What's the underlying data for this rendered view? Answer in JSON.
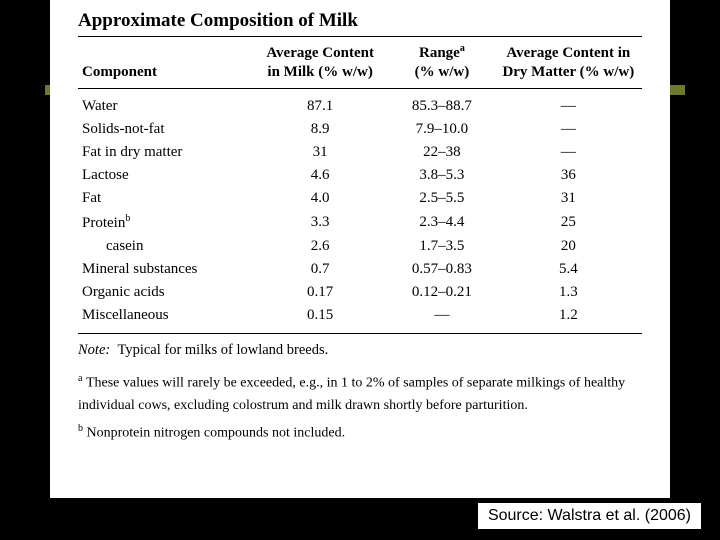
{
  "title": "Approximate Composition of Milk",
  "columns": {
    "component": "Component",
    "avg_line1": "Average Content",
    "avg_line2": "in Milk (% w/w)",
    "range_line1": "Range",
    "range_sup": "a",
    "range_line2": "(% w/w)",
    "dry_line1": "Average Content in",
    "dry_line2": "Dry Matter (% w/w)"
  },
  "rows": [
    {
      "label": "Water",
      "avg": "87.1",
      "range": "85.3–88.7",
      "dry": "—"
    },
    {
      "label": "Solids-not-fat",
      "avg": "8.9",
      "range": "7.9–10.0",
      "dry": "—"
    },
    {
      "label": "Fat in dry matter",
      "avg": "31",
      "range": "22–38",
      "dry": "—"
    },
    {
      "label": "Lactose",
      "avg": "4.6",
      "range": "3.8–5.3",
      "dry": "36"
    },
    {
      "label": "Fat",
      "avg": "4.0",
      "range": "2.5–5.5",
      "dry": "31"
    },
    {
      "label": "Protein",
      "sup": "b",
      "avg": "3.3",
      "range": "2.3–4.4",
      "dry": "25"
    },
    {
      "label": "casein",
      "indent": true,
      "avg": "2.6",
      "range": "1.7–3.5",
      "dry": "20"
    },
    {
      "label": "Mineral substances",
      "avg": "0.7",
      "range": "0.57–0.83",
      "dry": "5.4"
    },
    {
      "label": "Organic acids",
      "avg": "0.17",
      "range": "0.12–0.21",
      "dry": "1.3"
    },
    {
      "label": "Miscellaneous",
      "avg": "0.15",
      "range": "—",
      "dry": "1.2"
    }
  ],
  "note_label": "Note:",
  "note_text": "Typical for milks of lowland breeds.",
  "footnotes": {
    "a_sup": "a",
    "a": "These values will rarely be exceeded, e.g., in 1 to 2% of samples of separate milkings of healthy individual cows, excluding colostrum and milk drawn shortly before parturition.",
    "b_sup": "b",
    "b": "Nonprotein nitrogen compounds not included."
  },
  "source": "Source: Walstra et al. (2006)",
  "colors": {
    "page_bg": "#000000",
    "paper_bg": "#ffffff",
    "accent_bar": "#6b7a2a",
    "text": "#000000"
  }
}
